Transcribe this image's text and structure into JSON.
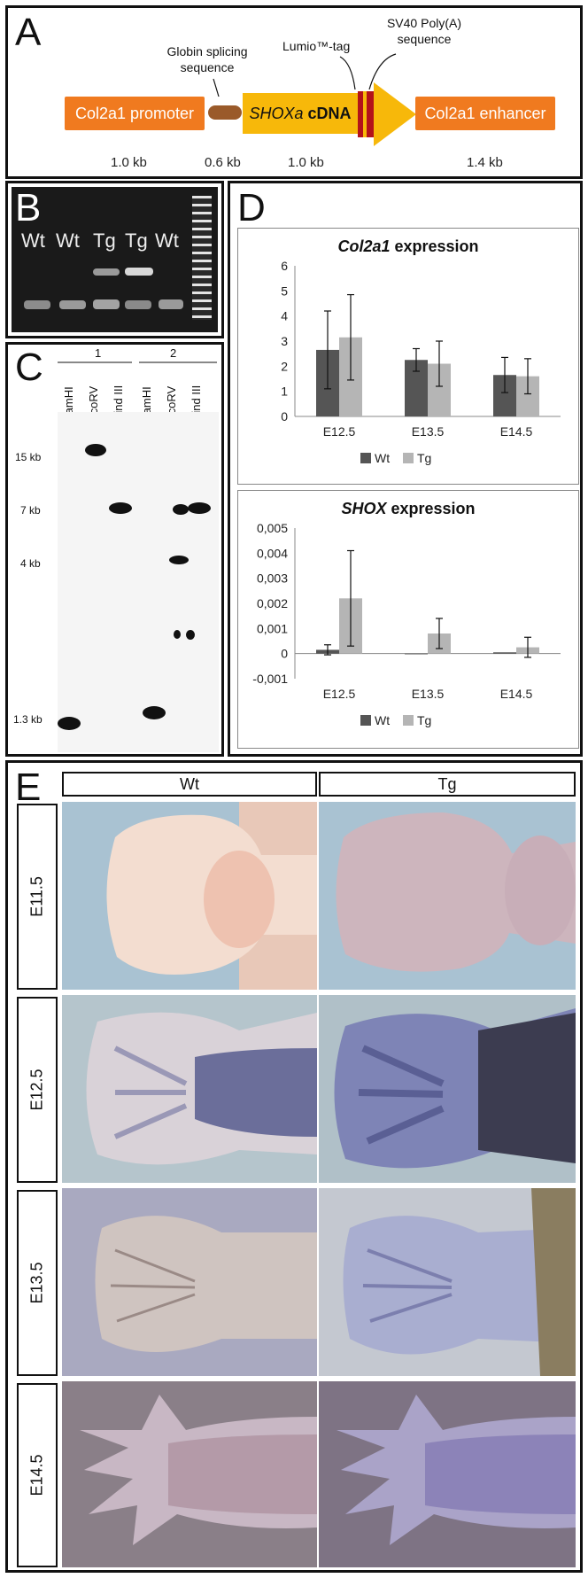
{
  "panel_labels": {
    "a": "A",
    "b": "B",
    "c": "C",
    "d": "D",
    "e": "E"
  },
  "construct": {
    "promoter": "Col2a1 promoter",
    "globin": "Globin splicing sequence",
    "cdna_italic": "SHOXa",
    "cdna_bold": "cDNA",
    "lumio": "Lumio™-tag",
    "sv40": "SV40 Poly(A) sequence",
    "enhancer": "Col2a1 enhancer",
    "sizes": [
      "1.0 kb",
      "0.6 kb",
      "1.0 kb",
      "1.4 kb"
    ],
    "colors": {
      "orange": "#f07a1f",
      "brown": "#9a5a2a",
      "red": "#b3121a",
      "yellow": "#f7b80a"
    }
  },
  "gel": {
    "lanes": [
      "Wt",
      "Wt",
      "Tg",
      "Tg",
      "Wt"
    ]
  },
  "southern": {
    "groups": [
      "1",
      "2"
    ],
    "lanes": [
      "BamHI",
      "EcoRV",
      "Hind III",
      "BamHI",
      "EcoRV",
      "Hind III"
    ],
    "sizes": [
      "15 kb",
      "7 kb",
      "4 kb",
      "1.3 kb"
    ]
  },
  "chart_data": [
    {
      "type": "bar",
      "title_italic": "Col2a1",
      "title_rest": " expression",
      "categories": [
        "E12.5",
        "E13.5",
        "E14.5"
      ],
      "series": [
        {
          "name": "Wt",
          "values": [
            2.65,
            2.25,
            1.65
          ],
          "errors": [
            1.55,
            0.45,
            0.7
          ],
          "color": "#555555"
        },
        {
          "name": "Tg",
          "values": [
            3.15,
            2.1,
            1.6
          ],
          "errors": [
            1.7,
            0.9,
            0.7
          ],
          "color": "#b5b5b5"
        }
      ],
      "ylim": [
        0,
        6
      ],
      "yticks": [
        "0",
        "1",
        "2",
        "3",
        "4",
        "5",
        "6"
      ],
      "legend": "bottom"
    },
    {
      "type": "bar",
      "title_italic": "SHOX",
      "title_rest": " expression",
      "categories": [
        "E12.5",
        "E13.5",
        "E14.5"
      ],
      "series": [
        {
          "name": "Wt",
          "values": [
            0.00015,
            0,
            5e-05
          ],
          "errors": [
            0.0002,
            0,
            0
          ],
          "color": "#555555"
        },
        {
          "name": "Tg",
          "values": [
            0.0022,
            0.0008,
            0.00025
          ],
          "errors": [
            0.0019,
            0.0006,
            0.0004
          ],
          "color": "#b5b5b5"
        }
      ],
      "ylim": [
        -0.001,
        0.005
      ],
      "yticks": [
        "-0,001",
        "0",
        "0,001",
        "0,002",
        "0,003",
        "0,004",
        "0,005"
      ],
      "legend": "bottom"
    }
  ],
  "panel_e": {
    "columns": [
      "Wt",
      "Tg"
    ],
    "rows": [
      "E11.5",
      "E12.5",
      "E13.5",
      "E14.5"
    ]
  }
}
